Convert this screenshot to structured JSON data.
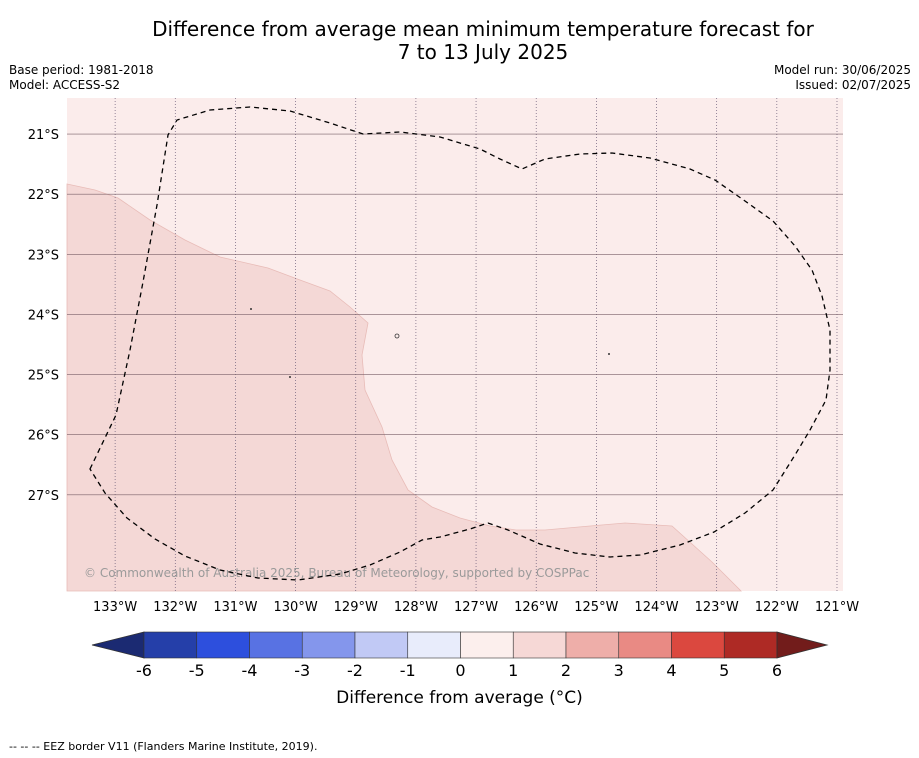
{
  "title_line1": "Difference from average mean minimum temperature forecast for",
  "title_line2": "7 to 13 July 2025",
  "base_period": "Base period: 1981-2018",
  "model": "Model: ACCESS-S2",
  "model_run": "Model run: 30/06/2025",
  "issued": "Issued: 02/07/2025",
  "copyright": "© Commonwealth of Australia 2025, Bureau of Meteorology, supported by COSPPac",
  "footer_note": "-- -- -- EEZ border V11 (Flanders Marine Institute, 2019).",
  "map": {
    "lon_range": [
      -133.8,
      -120.9
    ],
    "lat_range": [
      -28.6,
      -20.4
    ],
    "lon_ticks": [
      "133°W",
      "132°W",
      "131°W",
      "130°W",
      "129°W",
      "128°W",
      "127°W",
      "126°W",
      "125°W",
      "124°W",
      "123°W",
      "122°W",
      "121°W"
    ],
    "lat_ticks": [
      "21°S",
      "22°S",
      "23°S",
      "24°S",
      "25°S",
      "26°S",
      "27°S"
    ],
    "ocean_color": "#fbeceb",
    "warmer_region_color": "#f4d8d6",
    "grid": true
  },
  "colorbar": {
    "label": "Difference from average (°C)",
    "ticks": [
      "-6",
      "-5",
      "-4",
      "-3",
      "-2",
      "-1",
      "0",
      "1",
      "2",
      "3",
      "4",
      "5",
      "6"
    ],
    "colors": [
      "#253fa9",
      "#2d4fdd",
      "#5872e3",
      "#8496ec",
      "#c1c9f5",
      "#e8ecfb",
      "#fcefed",
      "#f6d8d6",
      "#eeaea9",
      "#e98a84",
      "#db483f",
      "#ae2a25"
    ],
    "under_color": "#1b2a72",
    "over_color": "#721c1b"
  }
}
